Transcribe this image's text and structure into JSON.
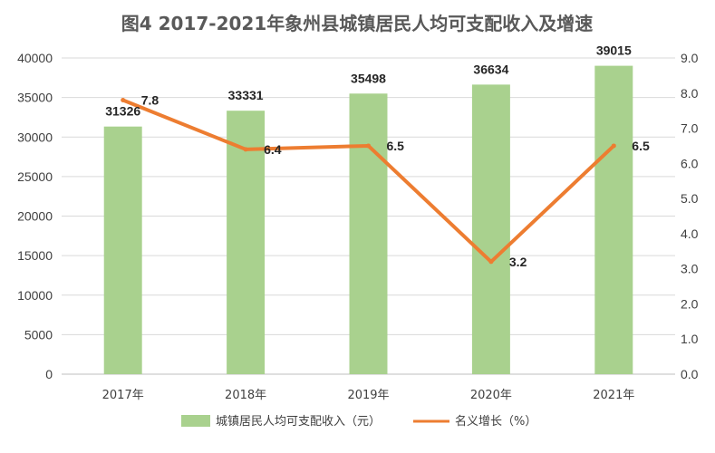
{
  "chart_data": {
    "type": "bar",
    "title": "图4  2017-2021年象州县城镇居民人均可支配收入及增速",
    "categories": [
      "2017年",
      "2018年",
      "2019年",
      "2020年",
      "2021年"
    ],
    "series": [
      {
        "name": "城镇居民人均可支配收入（元）",
        "type": "bar",
        "axis": "left",
        "values": [
          31326,
          33331,
          35498,
          36634,
          39015
        ],
        "color": "#a9d18e"
      },
      {
        "name": "名义增长（%）",
        "type": "line",
        "axis": "right",
        "values": [
          7.8,
          6.4,
          6.5,
          3.2,
          6.5
        ],
        "labels": [
          "7.8",
          "6.4",
          "6.5",
          "3.2",
          "6.5"
        ],
        "color": "#ed7d31"
      }
    ],
    "y_left": {
      "min": 0,
      "max": 40000,
      "step": 5000
    },
    "y_right": {
      "min": 0,
      "max": 9,
      "step": 1,
      "ticks": [
        "0.0",
        "1.0",
        "2.0",
        "3.0",
        "4.0",
        "5.0",
        "6.0",
        "7.0",
        "8.0",
        "9.0"
      ]
    },
    "grid": true,
    "legend_position": "bottom"
  }
}
